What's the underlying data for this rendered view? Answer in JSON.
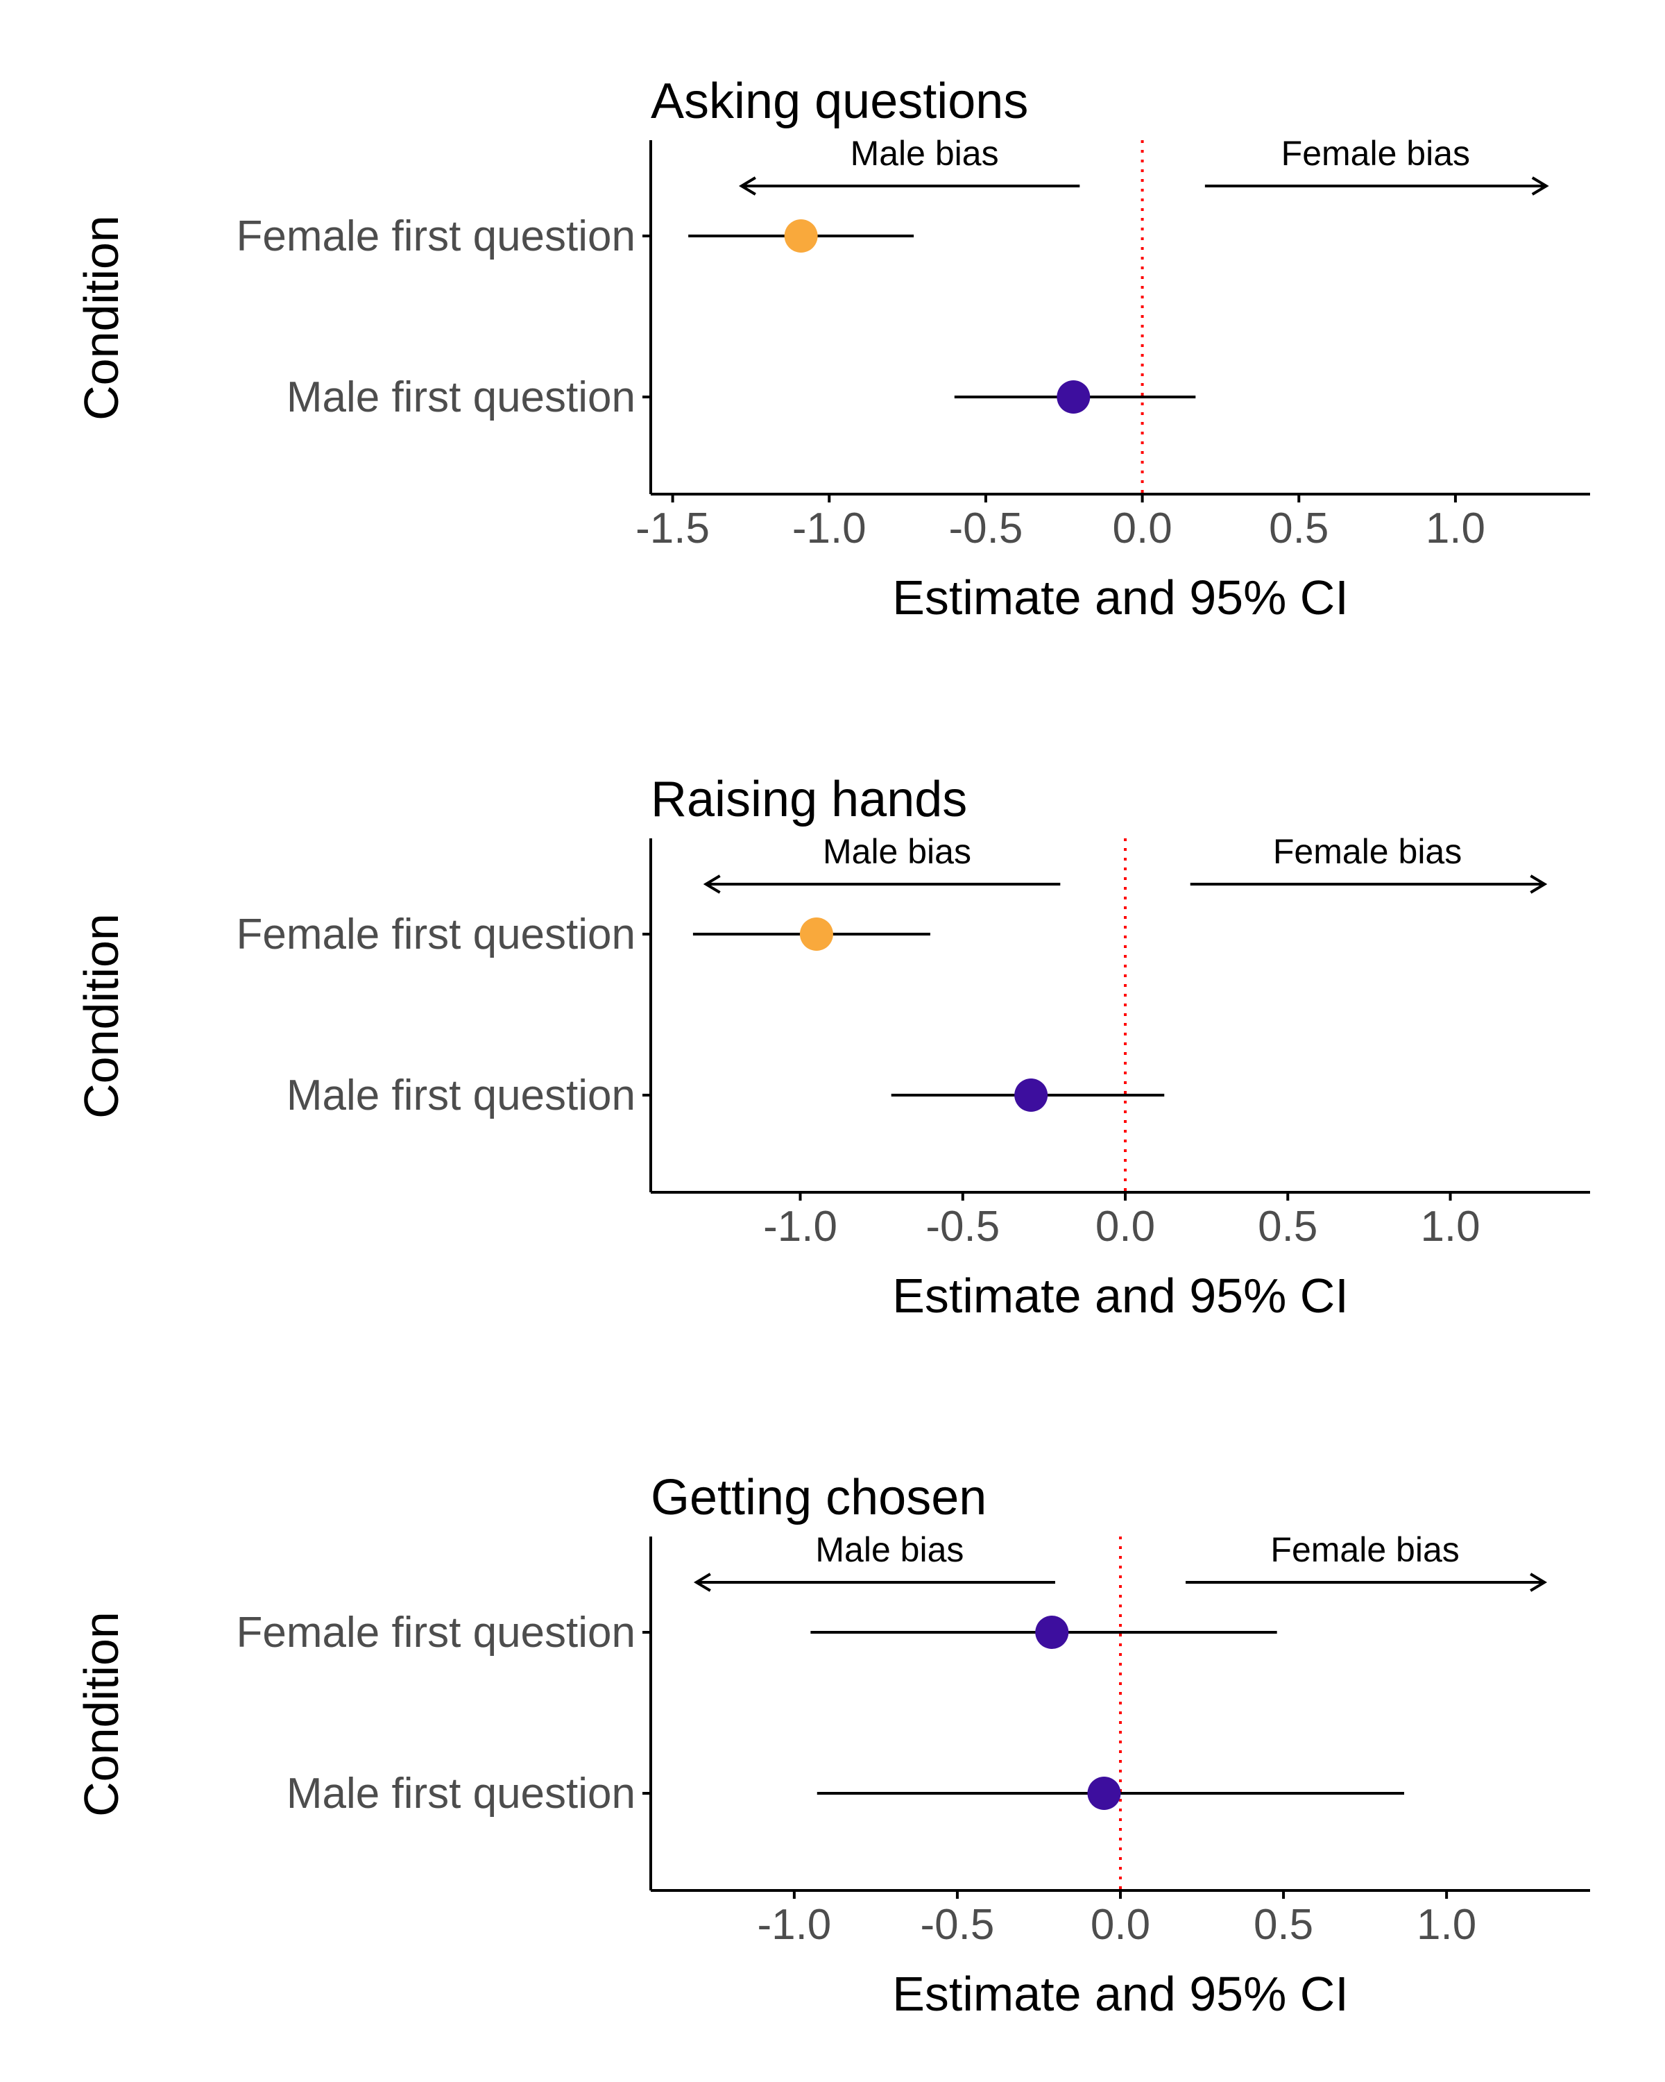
{
  "chart_data": [
    {
      "type": "scatter",
      "title": "Asking questions",
      "xlabel": "Estimate and 95% CI",
      "ylabel": "Condition",
      "xlim": [
        -1.57,
        1.43
      ],
      "xticks": [
        {
          "value": -1.5,
          "label": "-1.5"
        },
        {
          "value": -1.0,
          "label": "-1.0"
        },
        {
          "value": -0.5,
          "label": "-0.5"
        },
        {
          "value": 0.0,
          "label": "0.0"
        },
        {
          "value": 0.5,
          "label": "0.5"
        },
        {
          "value": 1.0,
          "label": "1.0"
        }
      ],
      "annotations": {
        "male_bias": "Male bias",
        "female_bias": "Female bias",
        "male_arrow": [
          -0.2,
          -1.28
        ],
        "female_arrow": [
          0.2,
          1.29
        ]
      },
      "reference_line": 0.0,
      "categories": [
        "Female first question",
        "Male first question"
      ],
      "points": [
        {
          "category": "Female first question",
          "estimate": -1.09,
          "ci": [
            -1.45,
            -0.73
          ],
          "color": "#f9a93c"
        },
        {
          "category": "Male first question",
          "estimate": -0.22,
          "ci": [
            -0.6,
            0.17
          ],
          "color": "#3d0e9e"
        }
      ]
    },
    {
      "type": "scatter",
      "title": "Raising hands",
      "xlabel": "Estimate and 95% CI",
      "ylabel": "Condition",
      "xlim": [
        -1.46,
        1.43
      ],
      "xticks": [
        {
          "value": -1.0,
          "label": "-1.0"
        },
        {
          "value": -0.5,
          "label": "-0.5"
        },
        {
          "value": 0.0,
          "label": "0.0"
        },
        {
          "value": 0.5,
          "label": "0.5"
        },
        {
          "value": 1.0,
          "label": "1.0"
        }
      ],
      "annotations": {
        "male_bias": "Male bias",
        "female_bias": "Female bias",
        "male_arrow": [
          -0.2,
          -1.29
        ],
        "female_arrow": [
          0.2,
          1.29
        ]
      },
      "reference_line": 0.0,
      "categories": [
        "Female first question",
        "Male first question"
      ],
      "points": [
        {
          "category": "Female first question",
          "estimate": -0.95,
          "ci": [
            -1.33,
            -0.6
          ],
          "color": "#f9a93c"
        },
        {
          "category": "Male first question",
          "estimate": -0.29,
          "ci": [
            -0.72,
            0.12
          ],
          "color": "#3d0e9e"
        }
      ]
    },
    {
      "type": "scatter",
      "title": "Getting chosen",
      "xlabel": "Estimate and 95% CI",
      "ylabel": "Condition",
      "xlim": [
        -1.44,
        1.44
      ],
      "xticks": [
        {
          "value": -1.0,
          "label": "-1.0"
        },
        {
          "value": -0.5,
          "label": "-0.5"
        },
        {
          "value": 0.0,
          "label": "0.0"
        },
        {
          "value": 0.5,
          "label": "0.5"
        },
        {
          "value": 1.0,
          "label": "1.0"
        }
      ],
      "annotations": {
        "male_bias": "Male bias",
        "female_bias": "Female bias",
        "male_arrow": [
          -0.2,
          -1.3
        ],
        "female_arrow": [
          0.2,
          1.3
        ]
      },
      "reference_line": 0.0,
      "categories": [
        "Female first question",
        "Male first question"
      ],
      "points": [
        {
          "category": "Female first question",
          "estimate": -0.21,
          "ci": [
            -0.95,
            0.48
          ],
          "color": "#3d0e9e"
        },
        {
          "category": "Male first question",
          "estimate": -0.05,
          "ci": [
            -0.93,
            0.87
          ],
          "color": "#3d0e9e"
        }
      ]
    }
  ]
}
